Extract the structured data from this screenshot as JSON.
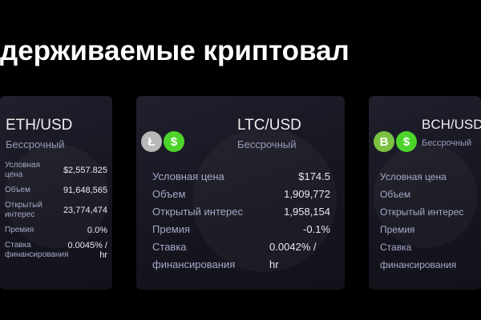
{
  "title": "держиваемые криптовал",
  "labels": {
    "price": "Условная цена",
    "volume": "Объем",
    "open_interest": "Открытый интерес",
    "premium": "Премия",
    "funding_1": "Ставка",
    "funding_2": "финансирования"
  },
  "cards": [
    {
      "pair": "ETH/USD",
      "type": "Бессрочный",
      "price": "$2,557.825",
      "volume": "91,648,565",
      "open_interest": "23,774,474",
      "premium": "0.0%",
      "funding_1": "0.0045% /",
      "funding_2": "hr",
      "icons": [
        "ethereum-icon",
        "dollar-icon"
      ],
      "coin_color": "#8a8fb0"
    },
    {
      "pair": "LTC/USD",
      "type": "Бессрочный",
      "price": "$174.5",
      "volume": "1,909,772",
      "open_interest": "1,958,154",
      "premium": "-0.1%",
      "funding_1": "0.0042% /",
      "funding_2": "hr",
      "icons": [
        "litecoin-icon",
        "dollar-icon"
      ],
      "coin_color": "#b8b8b8"
    },
    {
      "pair": "BCH/USD",
      "type": "Бессрочный",
      "icons": [
        "bitcoin-cash-icon",
        "dollar-icon"
      ],
      "coin_color": "#7cc242"
    }
  ],
  "colors": {
    "dollar": "#4cd42a",
    "background": "#000000"
  }
}
